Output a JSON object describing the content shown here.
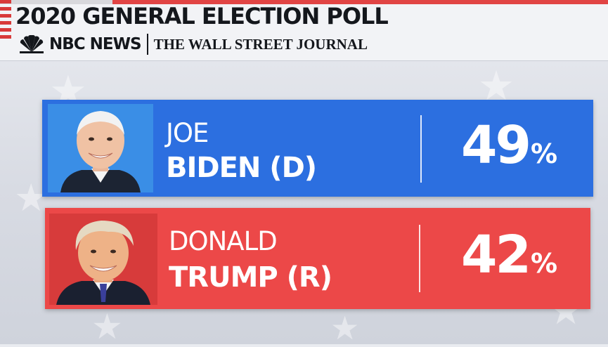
{
  "header": {
    "title": "2020 GENERAL ELECTION POLL",
    "nbc_logo": "NBC NEWS",
    "wsj_logo": "THE WALL STREET JOURNAL",
    "peacock_icon": "nbc-peacock-icon"
  },
  "candidates": [
    {
      "first_name": "JOE",
      "last_name": "BIDEN (D)",
      "percent": "49",
      "percent_symbol": "%",
      "card_color": "#2c6fe0",
      "photo_bg": "#3a8ee6"
    },
    {
      "first_name": "DONALD",
      "last_name": "TRUMP (R)",
      "percent": "42",
      "percent_symbol": "%",
      "card_color": "#ec4848",
      "photo_bg": "#d73b3b"
    }
  ],
  "colors": {
    "democrat": "#2c6fe0",
    "republican": "#ec4848",
    "background": "#dfe2e9",
    "title_text": "#14171c"
  }
}
